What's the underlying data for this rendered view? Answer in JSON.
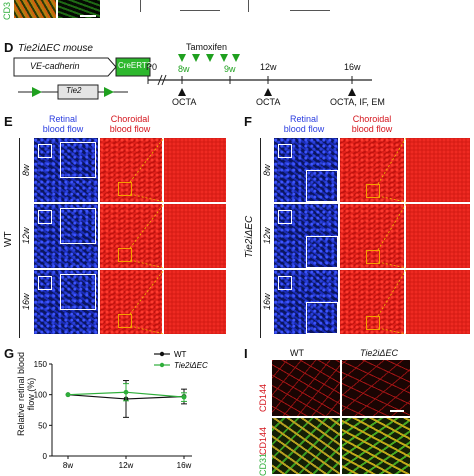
{
  "panelC": {
    "ylabel_fragment": "CD3"
  },
  "panelD": {
    "letter": "D",
    "mouse_label": "Tie2iΔEC mouse",
    "construct_promoter": "VE-cadherin",
    "construct_cre": "CreERT2",
    "construct_gene": "Tie2",
    "tamoxifen": "Tamoxifen",
    "timeline": [
      "P0",
      "8w",
      "9w",
      "12w",
      "16w"
    ],
    "events": [
      "OCTA",
      "OCTA",
      "OCTA, IF, EM"
    ],
    "colors": {
      "cre_box": "#2eb82e",
      "arrow": "#1fa01f"
    }
  },
  "panelE": {
    "letter": "E",
    "retinal": "Retinal\nblood flow",
    "choroidal": "Choroidal\nblood flow",
    "group": "WT",
    "rows": [
      "8w",
      "12w",
      "16w"
    ]
  },
  "panelF": {
    "letter": "F",
    "retinal": "Retinal\nblood flow",
    "choroidal": "Choroidal\nblood flow",
    "group": "Tie2iΔEC",
    "rows": [
      "8w",
      "12w",
      "16w"
    ]
  },
  "panelG": {
    "letter": "G"
  },
  "panelI": {
    "letter": "I",
    "col_wt": "WT",
    "col_ko": "Tie2iΔEC",
    "row1": "CD144",
    "row2_a": "CD31",
    "row2_b": "CD144"
  },
  "chart_data": {
    "type": "line",
    "title": "",
    "xlabel": "",
    "ylabel": "Relative retinal blood flow (%)",
    "categories": [
      "8w",
      "12w",
      "16w"
    ],
    "ylim": [
      0,
      150
    ],
    "yticks": [
      0,
      50,
      100,
      150
    ],
    "legend_position": "top-right",
    "series": [
      {
        "name": "WT",
        "values": [
          100,
          93,
          97
        ],
        "errors": [
          0,
          30,
          12
        ],
        "color": "#111111"
      },
      {
        "name": "Tie2iΔEC",
        "values": [
          100,
          104,
          96
        ],
        "errors": [
          0,
          14,
          7
        ],
        "color": "#2eae3a"
      }
    ]
  }
}
